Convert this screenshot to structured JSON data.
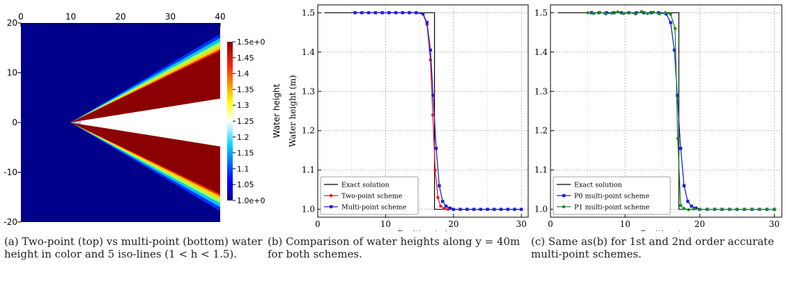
{
  "captions": [
    "(a) Two-point (top) vs multi-point (bottom) water height in color and 5 iso-lines (1 < h < 1.5).",
    "(b) Comparison of water heights along y = 40m for both schemes.",
    "(c) Same as(b) for 1st and 2nd order accurate multi-point schemes."
  ],
  "colors": {
    "exact": "#000000",
    "two_point": "#e41a1c",
    "multi_point": "#1f1fe0",
    "p1_multi_point": "#1a8c1a",
    "field_low": "#00008b",
    "field_high": "#8b0000"
  },
  "chart_data": [
    {
      "type": "heatmap",
      "title": "",
      "xlim": [
        0,
        40
      ],
      "ylim": [
        -20,
        20
      ],
      "x_ticks": [
        "0",
        "10",
        "20",
        "30",
        "40"
      ],
      "y_ticks": [
        "20",
        "10",
        "0",
        "-10",
        "-20"
      ],
      "colorbar": {
        "label": "Water height",
        "range": [
          1.0,
          1.5
        ],
        "ticks": [
          "1.5e+00",
          "1.45",
          "1.4",
          "1.35",
          "1.3",
          "1.25",
          "1.2",
          "1.15",
          "1.1",
          "1.05",
          "1.0e+00"
        ]
      }
    },
    {
      "type": "line",
      "xlabel": "Position (m)",
      "ylabel": "Water height (m)",
      "xlim": [
        0,
        31
      ],
      "ylim": [
        0.98,
        1.52
      ],
      "x_ticks": [
        "0",
        "10",
        "20",
        "30"
      ],
      "y_ticks": [
        "1.0",
        "1.1",
        "1.2",
        "1.3",
        "1.4",
        "1.5"
      ],
      "grid": true,
      "legend_position": "bottom-left",
      "series": [
        {
          "name": "Exact solution",
          "x": [
            1,
            17.2,
            17.2,
            30
          ],
          "y": [
            1.5,
            1.5,
            1.0,
            1.0
          ]
        },
        {
          "name": "Two-point scheme",
          "x": [
            5.5,
            6.5,
            7.5,
            8.5,
            9.5,
            10.5,
            11.5,
            12.5,
            13.5,
            14.5,
            15.5,
            16.1,
            16.6,
            16.95,
            17.3,
            17.7,
            18.1,
            18.6,
            19.2,
            20,
            21,
            22,
            23,
            24,
            25,
            26,
            27,
            28,
            29,
            30
          ],
          "y": [
            1.5,
            1.5,
            1.5,
            1.5,
            1.5,
            1.5,
            1.5,
            1.5,
            1.5,
            1.5,
            1.497,
            1.47,
            1.38,
            1.24,
            1.1,
            1.03,
            1.008,
            1.002,
            1.0,
            1.0,
            1.0,
            1.0,
            1.0,
            1.0,
            1.0,
            1.0,
            1.0,
            1.0,
            1.0,
            1.0
          ]
        },
        {
          "name": "Multi-point scheme",
          "x": [
            5.5,
            6.5,
            7.5,
            8.5,
            9.5,
            10.5,
            11.5,
            12.5,
            13.5,
            14.5,
            15.5,
            16.1,
            16.6,
            17.0,
            17.45,
            17.9,
            18.4,
            18.9,
            19.5,
            20,
            21,
            22,
            23,
            24,
            25,
            26,
            27,
            28,
            29,
            30
          ],
          "y": [
            1.5,
            1.5,
            1.5,
            1.5,
            1.5,
            1.5,
            1.5,
            1.5,
            1.5,
            1.5,
            1.497,
            1.475,
            1.405,
            1.29,
            1.155,
            1.06,
            1.02,
            1.008,
            1.003,
            1.0,
            1.0,
            1.0,
            1.0,
            1.0,
            1.0,
            1.0,
            1.0,
            1.0,
            1.0,
            1.0
          ]
        }
      ]
    },
    {
      "type": "line",
      "xlabel": "Position (m)",
      "ylabel": "Water height (m)",
      "xlim": [
        0,
        31
      ],
      "ylim": [
        0.98,
        1.52
      ],
      "x_ticks": [
        "0",
        "10",
        "20",
        "30"
      ],
      "y_ticks": [
        "1.0",
        "1.1",
        "1.2",
        "1.3",
        "1.4",
        "1.5"
      ],
      "grid": true,
      "legend_position": "bottom-left",
      "series": [
        {
          "name": "Exact solution",
          "x": [
            1,
            17.2,
            17.2,
            30
          ],
          "y": [
            1.5,
            1.5,
            1.0,
            1.0
          ]
        },
        {
          "name": "P0 multi-point scheme",
          "x": [
            5.5,
            6.5,
            7.5,
            8.5,
            9.5,
            10.5,
            11.5,
            12.5,
            13.5,
            14.5,
            15.5,
            16.1,
            16.6,
            17.0,
            17.45,
            17.9,
            18.4,
            18.9,
            19.5,
            20,
            21,
            22,
            23,
            24,
            25,
            26,
            27,
            28,
            29,
            30
          ],
          "y": [
            1.5,
            1.5,
            1.5,
            1.5,
            1.5,
            1.5,
            1.5,
            1.5,
            1.5,
            1.5,
            1.497,
            1.475,
            1.405,
            1.29,
            1.155,
            1.06,
            1.02,
            1.008,
            1.003,
            1.0,
            1.0,
            1.0,
            1.0,
            1.0,
            1.0,
            1.0,
            1.0,
            1.0,
            1.0,
            1.0
          ]
        },
        {
          "name": "P1 multi-point scheme",
          "x": [
            5,
            5.8,
            6.6,
            7.4,
            8.2,
            9,
            9.8,
            10.6,
            11.4,
            12.2,
            13,
            13.8,
            14.6,
            15.4,
            16.1,
            16.7,
            17.05,
            17.45,
            17.9,
            18.5,
            19.2,
            20,
            21,
            22,
            23,
            24,
            25,
            26,
            27,
            28,
            29,
            30
          ],
          "y": [
            1.5,
            1.498,
            1.501,
            1.497,
            1.499,
            1.502,
            1.498,
            1.5,
            1.497,
            1.503,
            1.498,
            1.501,
            1.497,
            1.5,
            1.496,
            1.46,
            1.18,
            1.01,
            1.002,
            0.999,
            1.001,
            1.0,
            1.0,
            1.0,
            1.0,
            1.0,
            1.0,
            1.0,
            1.0,
            1.0,
            1.0,
            1.0
          ]
        }
      ]
    }
  ]
}
